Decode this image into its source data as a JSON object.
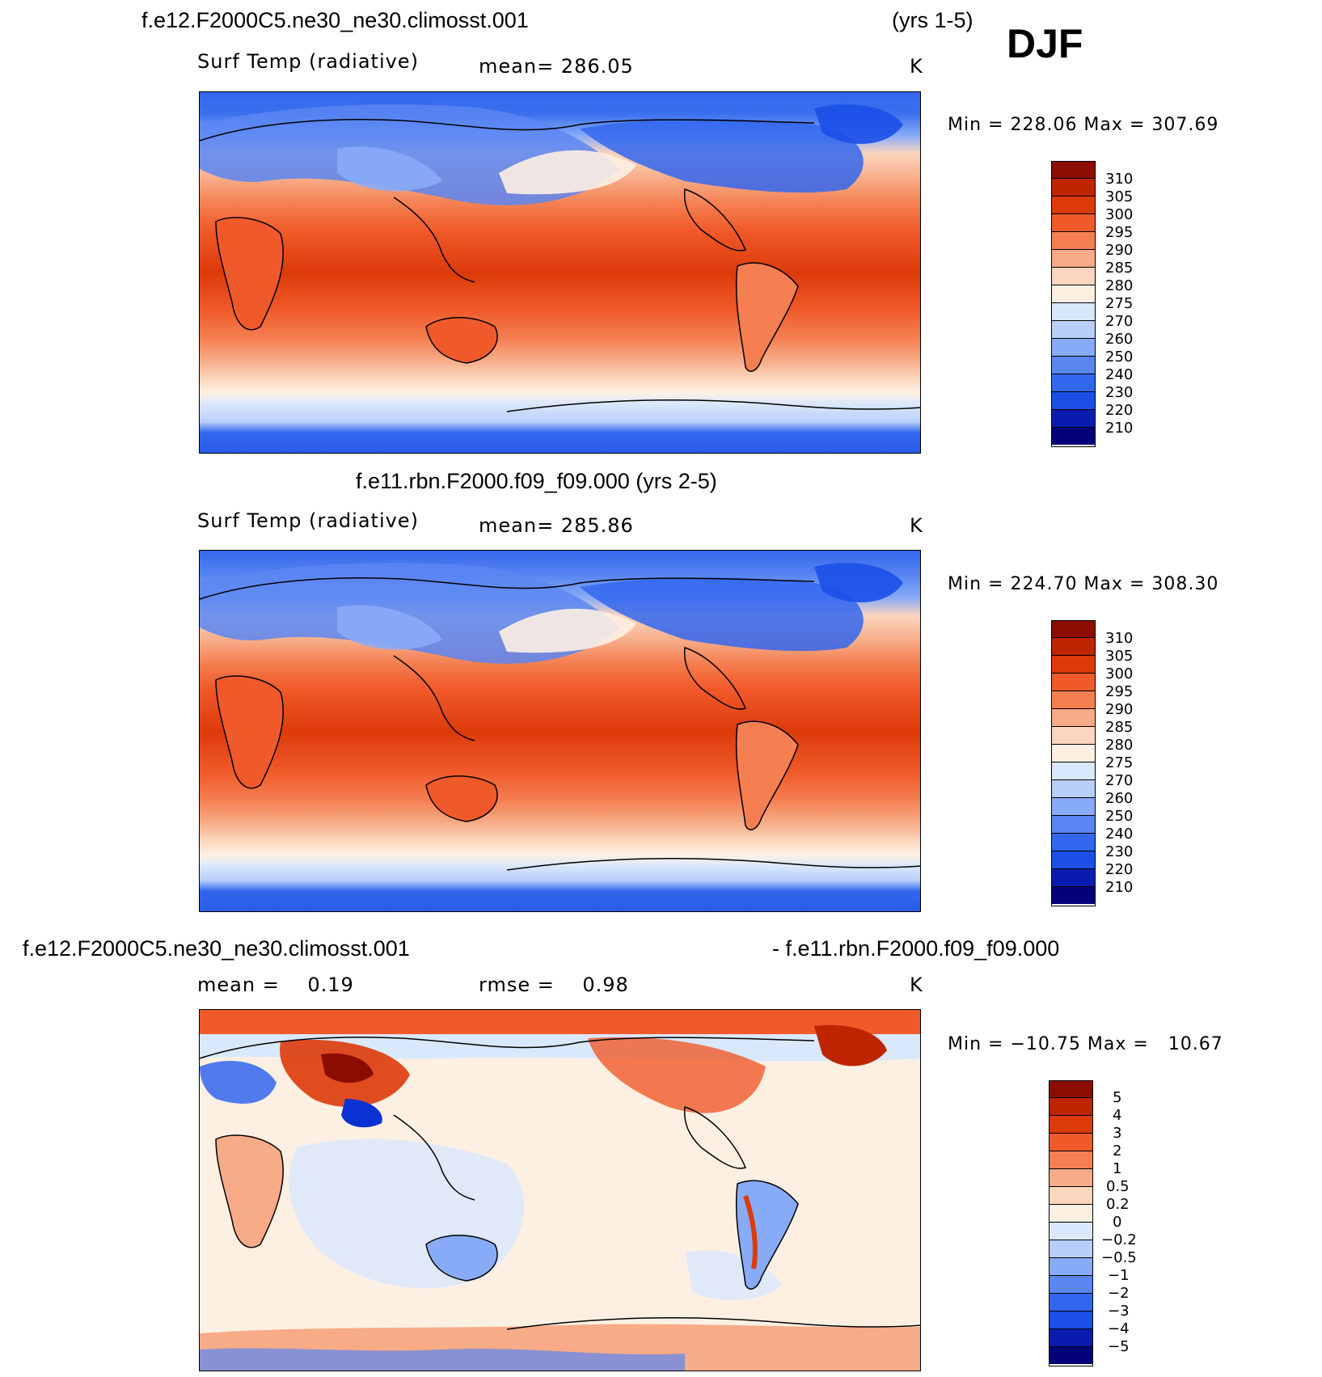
{
  "header": {
    "run_title": "f.e12.F2000C5.ne30_ne30.climosst.001",
    "years": "(yrs 1-5)",
    "season": "DJF"
  },
  "panels": [
    {
      "title": "",
      "left_label": "Surf Temp (radiative)",
      "center_label": "mean= 286.05",
      "units": "K",
      "min_max": "Min = 228.06 Max = 307.69"
    },
    {
      "title": "f.e11.rbn.F2000.f09_f09.000 (yrs 2-5)",
      "left_label": "Surf Temp (radiative)",
      "center_label": "mean= 285.86",
      "units": "K",
      "min_max": "Min = 224.70 Max = 308.30"
    },
    {
      "title_left": "f.e12.F2000C5.ne30_ne30.climosst.001",
      "title_right": "- f.e11.rbn.F2000.f09_f09.000",
      "left_label": "mean =    0.19",
      "center_label": "rmse =    0.98",
      "units": "K",
      "min_max": "Min = −10.75 Max =   10.67"
    }
  ],
  "chart_data": [
    {
      "type": "heatmap",
      "title": "f.e12.F2000C5.ne30_ne30.climosst.001 (yrs 1-5)",
      "variable": "Surf Temp (radiative)",
      "units": "K",
      "mean": 286.05,
      "min": 228.06,
      "max": 307.69,
      "contour_levels": [
        210,
        220,
        230,
        240,
        250,
        260,
        270,
        275,
        280,
        285,
        290,
        295,
        300,
        305,
        310
      ],
      "colors": [
        "#04007a",
        "#0a1cb0",
        "#0a32d2",
        "#1b4fe8",
        "#3366ee",
        "#5a86f2",
        "#88abf7",
        "#b8cffa",
        "#dae8fb",
        "#fdf0e3",
        "#fbd5bd",
        "#f7ab87",
        "#f57f51",
        "#f05a2a",
        "#dd3a0a",
        "#be2500",
        "#8c0d00"
      ],
      "tick_labels": [
        "310",
        "305",
        "300",
        "295",
        "290",
        "285",
        "280",
        "275",
        "270",
        "260",
        "250",
        "240",
        "230",
        "220",
        "210"
      ]
    },
    {
      "type": "heatmap",
      "title": "f.e11.rbn.F2000.f09_f09.000 (yrs 2-5)",
      "variable": "Surf Temp (radiative)",
      "units": "K",
      "mean": 285.86,
      "min": 224.7,
      "max": 308.3,
      "contour_levels": [
        210,
        220,
        230,
        240,
        250,
        260,
        270,
        275,
        280,
        285,
        290,
        295,
        300,
        305,
        310
      ],
      "colors": [
        "#04007a",
        "#0a1cb0",
        "#0a32d2",
        "#1b4fe8",
        "#3366ee",
        "#5a86f2",
        "#88abf7",
        "#b8cffa",
        "#dae8fb",
        "#fdf0e3",
        "#fbd5bd",
        "#f7ab87",
        "#f57f51",
        "#f05a2a",
        "#dd3a0a",
        "#be2500",
        "#8c0d00"
      ],
      "tick_labels": [
        "310",
        "305",
        "300",
        "295",
        "290",
        "285",
        "280",
        "275",
        "270",
        "260",
        "250",
        "240",
        "230",
        "220",
        "210"
      ]
    },
    {
      "type": "heatmap",
      "title": "f.e12.F2000C5.ne30_ne30.climosst.001 - f.e11.rbn.F2000.f09_f09.000",
      "units": "K",
      "mean": 0.19,
      "rmse": 0.98,
      "min": -10.75,
      "max": 10.67,
      "contour_levels": [
        -5,
        -4,
        -3,
        -2,
        -1,
        -0.5,
        -0.2,
        0,
        0.2,
        0.5,
        1,
        2,
        3,
        4,
        5
      ],
      "colors": [
        "#04007a",
        "#0a1cb0",
        "#0a32d2",
        "#1b4fe8",
        "#3366ee",
        "#5a86f2",
        "#88abf7",
        "#b8cffa",
        "#dae8fb",
        "#fdf0e3",
        "#fbd5bd",
        "#f7ab87",
        "#f57f51",
        "#f05a2a",
        "#dd3a0a",
        "#be2500",
        "#8c0d00"
      ],
      "tick_labels": [
        "5",
        "4",
        "3",
        "2",
        "1",
        "0.5",
        "0.2",
        "0",
        "−0.2",
        "−0.5",
        "−1",
        "−2",
        "−3",
        "−4",
        "−5"
      ]
    }
  ]
}
